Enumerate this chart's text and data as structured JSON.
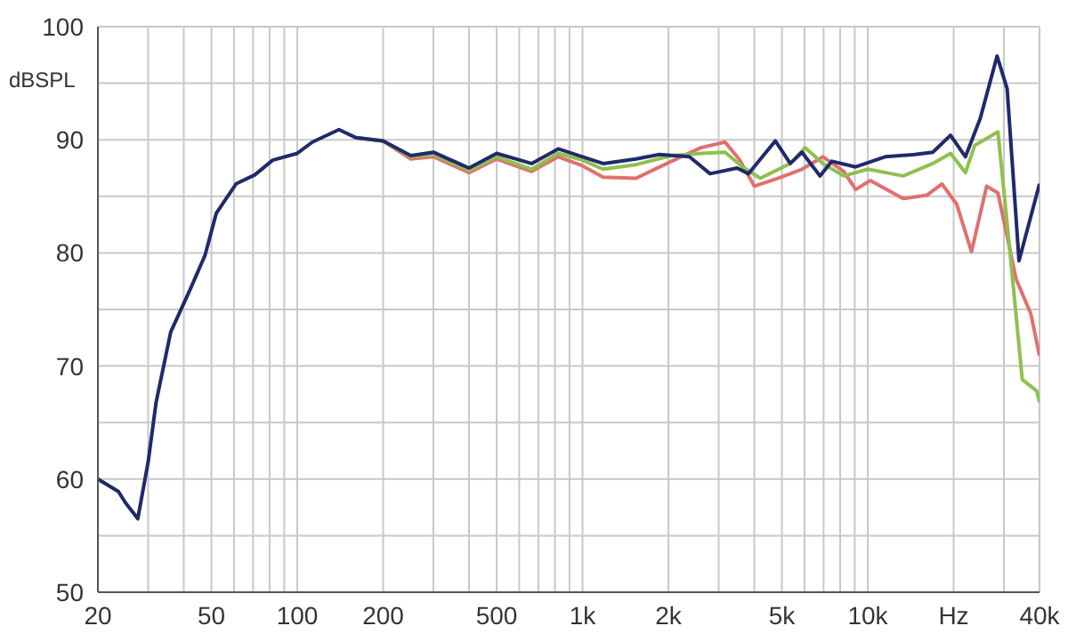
{
  "chart_data": {
    "type": "line",
    "ylabel": "dBSPL",
    "log": "x",
    "grid": true,
    "xlim": [
      20,
      40000
    ],
    "ylim": [
      50,
      100
    ],
    "xticks": [
      20,
      {
        "value": 30,
        "label": null
      },
      {
        "value": 40,
        "label": null
      },
      50,
      {
        "value": 60,
        "label": null
      },
      {
        "value": 70,
        "label": null
      },
      {
        "value": 80,
        "label": null
      },
      {
        "value": 90,
        "label": null
      },
      100,
      200,
      {
        "value": 300,
        "label": null
      },
      {
        "value": 400,
        "label": null
      },
      500,
      {
        "value": 600,
        "label": null
      },
      {
        "value": 700,
        "label": null
      },
      {
        "value": 800,
        "label": null
      },
      {
        "value": 900,
        "label": null
      },
      {
        "value": 1000,
        "label": "1k"
      },
      {
        "value": 2000,
        "label": "2k"
      },
      {
        "value": 3000,
        "label": null
      },
      {
        "value": 4000,
        "label": null
      },
      {
        "value": 5000,
        "label": "5k"
      },
      {
        "value": 6000,
        "label": null
      },
      {
        "value": 7000,
        "label": null
      },
      {
        "value": 8000,
        "label": null
      },
      {
        "value": 9000,
        "label": null
      },
      {
        "value": 10000,
        "label": "10k"
      },
      {
        "value": 20000,
        "label": "Hz"
      },
      {
        "value": 30000,
        "label": null
      },
      {
        "value": 40000,
        "label": "40k"
      }
    ],
    "yticks": [
      50,
      {
        "value": 55,
        "label": null
      },
      60,
      {
        "value": 65,
        "label": null
      },
      70,
      {
        "value": 75,
        "label": null
      },
      80,
      {
        "value": 85,
        "label": null
      },
      90,
      {
        "value": 95,
        "label": null
      },
      100
    ],
    "series": [
      {
        "color": "#e07070",
        "x": [
          160,
          200,
          250,
          300,
          400,
          500,
          663,
          822,
          1000,
          1180,
          1540,
          2050,
          2600,
          3160,
          3560,
          4000,
          4860,
          5880,
          6970,
          8240,
          9070,
          10200,
          13300,
          16100,
          18200,
          20500,
          23100,
          26100,
          28600,
          33100,
          37300,
          40000
        ],
        "values": [
          90.2,
          89.9,
          88.3,
          88.5,
          87.1,
          88.3,
          87.2,
          88.5,
          87.7,
          86.7,
          86.6,
          88.1,
          89.3,
          89.8,
          88.2,
          85.9,
          86.6,
          87.4,
          88.5,
          87.2,
          85.6,
          86.4,
          84.8,
          85.1,
          86.1,
          84.3,
          80.1,
          85.9,
          85.3,
          77.7,
          74.6,
          70.9
        ]
      },
      {
        "color": "#8fc050",
        "x": [
          160,
          200,
          250,
          300,
          400,
          500,
          663,
          822,
          1000,
          1180,
          1540,
          2050,
          2600,
          3160,
          3640,
          4200,
          5350,
          6030,
          6970,
          8240,
          10000,
          13300,
          16900,
          19500,
          22000,
          23700,
          28600,
          31600,
          34800,
          39100,
          40000
        ],
        "values": [
          90.2,
          89.9,
          88.5,
          88.7,
          87.3,
          88.5,
          87.4,
          88.8,
          88.2,
          87.4,
          87.8,
          88.6,
          88.8,
          88.9,
          87.6,
          86.6,
          87.9,
          89.3,
          87.9,
          86.8,
          87.4,
          86.8,
          87.9,
          88.8,
          87.1,
          89.5,
          90.7,
          79.8,
          68.8,
          67.8,
          66.8
        ]
      },
      {
        "color": "#1f2a6b",
        "x": [
          20,
          23.6,
          25,
          27.6,
          30,
          32,
          36,
          42,
          47.5,
          52,
          61,
          71,
          82,
          100,
          113,
          140,
          160,
          200,
          250,
          300,
          400,
          500,
          663,
          822,
          1000,
          1180,
          1540,
          1860,
          2370,
          2800,
          3480,
          3820,
          4740,
          5350,
          5880,
          6800,
          7480,
          9070,
          11500,
          14600,
          16900,
          19500,
          22000,
          24800,
          28400,
          30800,
          33900,
          40000
        ],
        "values": [
          60,
          58.9,
          57.9,
          56.5,
          61.5,
          66.8,
          73,
          76.7,
          79.8,
          83.5,
          86.1,
          86.9,
          88.2,
          88.8,
          89.8,
          90.9,
          90.2,
          89.9,
          88.6,
          88.9,
          87.5,
          88.8,
          87.9,
          89.2,
          88.5,
          87.9,
          88.3,
          88.7,
          88.5,
          87,
          87.5,
          87,
          89.9,
          87.9,
          88.9,
          86.8,
          88.1,
          87.6,
          88.5,
          88.7,
          88.9,
          90.4,
          88.5,
          91.9,
          97.4,
          94.5,
          79.3,
          86.1
        ]
      }
    ]
  }
}
